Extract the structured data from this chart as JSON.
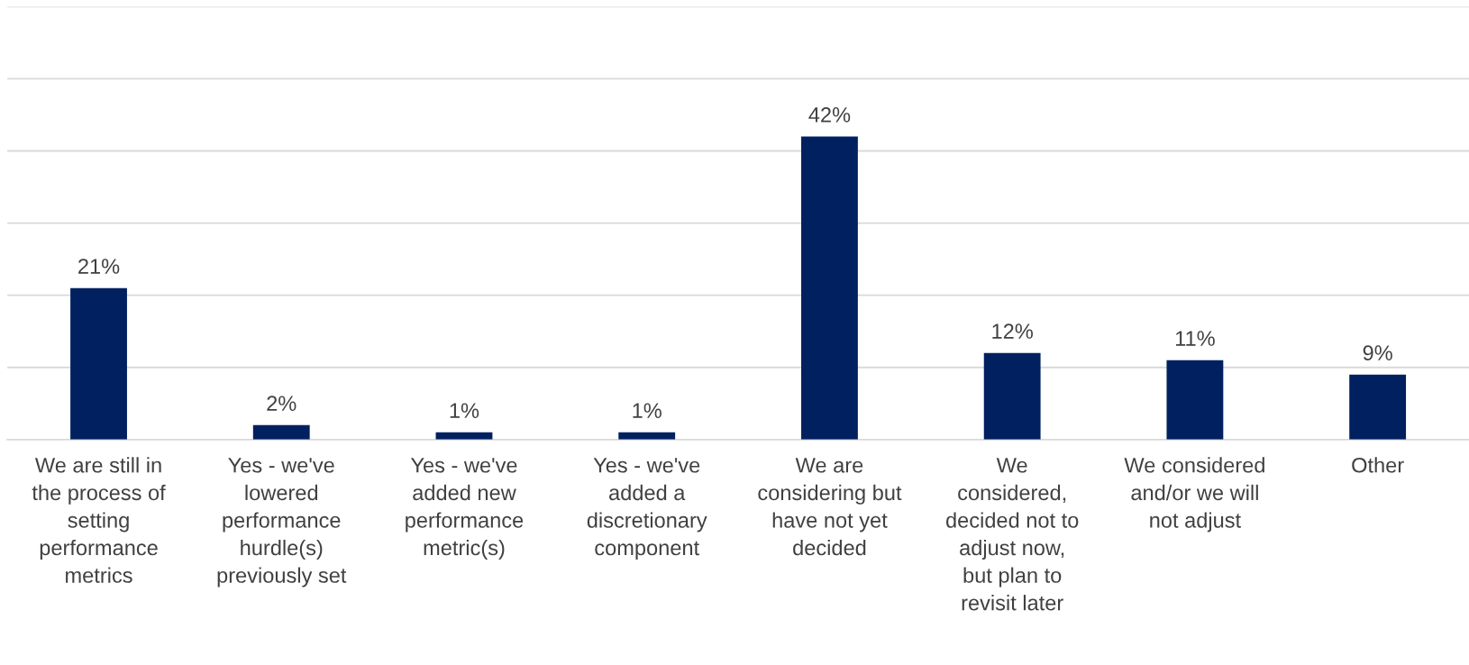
{
  "chart_data": {
    "type": "bar",
    "categories": [
      "We are still in\nthe process of\nsetting\nperformance\nmetrics",
      "Yes - we've\nlowered\nperformance\nhurdle(s)\npreviously set",
      "Yes - we've\nadded new\nperformance\nmetric(s)",
      "Yes - we've\nadded a\ndiscretionary\ncomponent",
      "We are\nconsidering but\nhave not yet\ndecided",
      "We\nconsidered,\ndecided not to\nadjust now,\nbut plan to\nrevisit later",
      "We considered\nand/or we will\nnot adjust",
      "Other"
    ],
    "values": [
      21,
      2,
      1,
      1,
      42,
      12,
      11,
      9
    ],
    "value_labels": [
      "21%",
      "2%",
      "1%",
      "1%",
      "42%",
      "12%",
      "11%",
      "9%"
    ],
    "color": "#002060",
    "ylim": [
      0,
      60
    ],
    "yticks": [
      {
        "value": 0,
        "label": null
      },
      {
        "value": 10,
        "label": null
      },
      {
        "value": 20,
        "label": null
      },
      {
        "value": 30,
        "label": null
      },
      {
        "value": 40,
        "label": null
      },
      {
        "value": 50,
        "label": null
      },
      {
        "value": 60,
        "label": null
      }
    ],
    "tick_labels": "x",
    "grid": "y",
    "legend": false
  }
}
